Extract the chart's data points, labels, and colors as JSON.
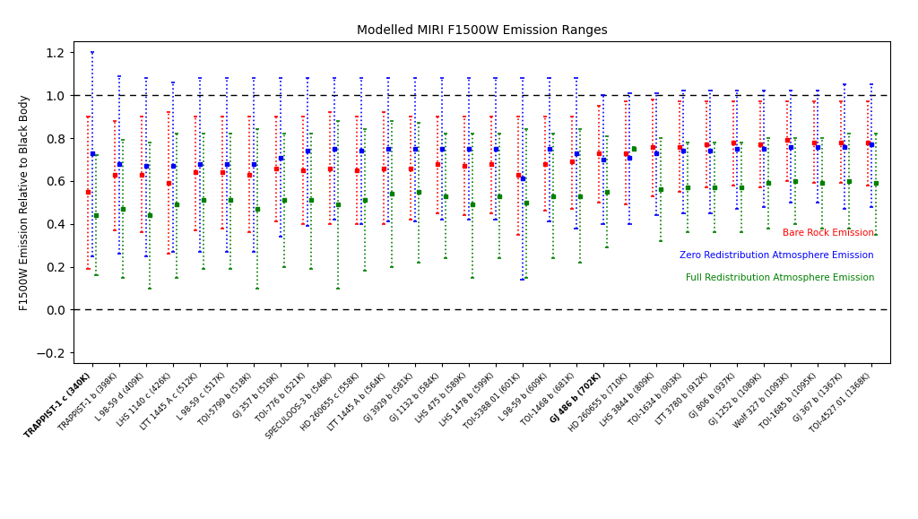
{
  "title": "Modelled MIRI F1500W Emission Ranges",
  "ylabel": "F1500W Emission Relative to Black Body",
  "ylim": [
    -0.25,
    1.25
  ],
  "yticks": [
    -0.2,
    0.0,
    0.2,
    0.4,
    0.6,
    0.8,
    1.0,
    1.2
  ],
  "legend_labels": [
    "Bare Rock Emission",
    "Zero Redistribution Atmosphere Emission",
    "Full Redistribution Atmosphere Emission"
  ],
  "legend_colors": [
    "red",
    "blue",
    "green"
  ],
  "planets": [
    "TRAPPIST-1 c (340K)",
    "TRAPPIST-1 b (398K)",
    "L 98-59 d (409K)",
    "LHS 1140 c (426K)",
    "LTT 1445 A c (512K)",
    "L 98-59 c (517K)",
    "TOI-5799 b (518K)",
    "GJ 357 b (519K)",
    "TOI-776 b (521K)",
    "SPECULOOS-3 b (546K)",
    "HD 260655 c (558K)",
    "LTT 1445 A b (564K)",
    "GJ 3929 b (581K)",
    "GJ 1132 b (584K)",
    "LHS 475 b (589K)",
    "LHS 1478 b (599K)",
    "TOI-5388.01 (601K)",
    "L 98-59 b (609K)",
    "TOI-1468 b (681K)",
    "GJ 486 b (702K)",
    "HD 260655 b (710K)",
    "LHS 3844 b (809K)",
    "TOI-1634 b (903K)",
    "LTT 3780 b (912K)",
    "GJ 806 b (937K)",
    "GJ 1252 b (1089K)",
    "Wolf 327 b (1093K)",
    "TOI-1685 b (1095K)",
    "GJ 367 b (1367K)",
    "TOI-4527.01 (1368K)"
  ],
  "bold_planets": [
    "TRAPPIST-1 c (340K)",
    "GJ 486 b (702K)"
  ],
  "red_lo": [
    0.19,
    0.37,
    0.36,
    0.26,
    0.37,
    0.38,
    0.36,
    0.41,
    0.4,
    0.4,
    0.4,
    0.4,
    0.42,
    0.45,
    0.44,
    0.45,
    0.35,
    0.46,
    0.47,
    0.5,
    0.49,
    0.53,
    0.55,
    0.57,
    0.58,
    0.57,
    0.6,
    0.59,
    0.59,
    0.58
  ],
  "red_hi": [
    0.9,
    0.88,
    0.9,
    0.92,
    0.9,
    0.9,
    0.9,
    0.9,
    0.9,
    0.92,
    0.9,
    0.92,
    0.9,
    0.9,
    0.9,
    0.9,
    0.9,
    0.9,
    0.9,
    0.95,
    0.97,
    0.98,
    0.97,
    0.97,
    0.97,
    0.97,
    0.97,
    0.97,
    0.97,
    0.97
  ],
  "blue_lo": [
    0.25,
    0.26,
    0.25,
    0.27,
    0.27,
    0.27,
    0.27,
    0.34,
    0.39,
    0.42,
    0.4,
    0.41,
    0.41,
    0.42,
    0.42,
    0.42,
    0.14,
    0.41,
    0.38,
    0.4,
    0.4,
    0.44,
    0.45,
    0.45,
    0.47,
    0.48,
    0.5,
    0.5,
    0.47,
    0.48
  ],
  "blue_hi": [
    1.2,
    1.09,
    1.08,
    1.06,
    1.08,
    1.08,
    1.08,
    1.08,
    1.08,
    1.08,
    1.08,
    1.08,
    1.08,
    1.08,
    1.08,
    1.08,
    1.08,
    1.08,
    1.08,
    1.0,
    1.01,
    1.01,
    1.02,
    1.02,
    1.02,
    1.02,
    1.02,
    1.02,
    1.05,
    1.05
  ],
  "green_lo": [
    0.16,
    0.15,
    0.1,
    0.15,
    0.19,
    0.19,
    0.1,
    0.2,
    0.19,
    0.1,
    0.18,
    0.2,
    0.22,
    0.24,
    0.15,
    0.24,
    0.15,
    0.24,
    0.22,
    0.29,
    0.74,
    0.32,
    0.36,
    0.36,
    0.36,
    0.38,
    0.4,
    0.38,
    0.38,
    0.35
  ],
  "green_hi": [
    0.72,
    0.79,
    0.78,
    0.82,
    0.82,
    0.82,
    0.84,
    0.82,
    0.82,
    0.88,
    0.84,
    0.88,
    0.87,
    0.82,
    0.82,
    0.82,
    0.84,
    0.82,
    0.84,
    0.81,
    0.76,
    0.8,
    0.78,
    0.78,
    0.78,
    0.8,
    0.8,
    0.8,
    0.82,
    0.82
  ],
  "red_center": [
    0.55,
    0.63,
    0.63,
    0.59,
    0.64,
    0.64,
    0.63,
    0.66,
    0.65,
    0.66,
    0.65,
    0.66,
    0.66,
    0.68,
    0.67,
    0.68,
    0.63,
    0.68,
    0.69,
    0.73,
    0.73,
    0.76,
    0.76,
    0.77,
    0.78,
    0.77,
    0.79,
    0.78,
    0.78,
    0.78
  ],
  "blue_center": [
    0.73,
    0.68,
    0.67,
    0.67,
    0.68,
    0.68,
    0.68,
    0.71,
    0.74,
    0.75,
    0.74,
    0.75,
    0.75,
    0.75,
    0.75,
    0.75,
    0.61,
    0.75,
    0.73,
    0.7,
    0.71,
    0.73,
    0.74,
    0.74,
    0.75,
    0.75,
    0.76,
    0.76,
    0.76,
    0.77
  ],
  "green_center": [
    0.44,
    0.47,
    0.44,
    0.49,
    0.51,
    0.51,
    0.47,
    0.51,
    0.51,
    0.49,
    0.51,
    0.54,
    0.55,
    0.53,
    0.49,
    0.53,
    0.5,
    0.53,
    0.53,
    0.55,
    0.75,
    0.56,
    0.57,
    0.57,
    0.57,
    0.59,
    0.6,
    0.59,
    0.6,
    0.59
  ]
}
